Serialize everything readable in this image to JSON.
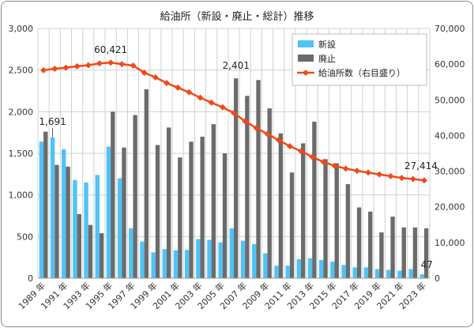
{
  "chart_data": {
    "type": "bar+line",
    "title": "給油所（新設・廃止・総計）推移",
    "years": [
      1989,
      1990,
      1991,
      1992,
      1993,
      1994,
      1995,
      1996,
      1997,
      1998,
      1999,
      2000,
      2001,
      2002,
      2003,
      2004,
      2005,
      2006,
      2007,
      2008,
      2009,
      2010,
      2011,
      2012,
      2013,
      2014,
      2015,
      2016,
      2017,
      2018,
      2019,
      2020,
      2021,
      2022,
      2023
    ],
    "x_tick_labels": [
      "1989 年",
      "1991 年",
      "1993 年",
      "1995 年",
      "1997 年",
      "1999 年",
      "2001 年",
      "2003 年",
      "2005 年",
      "2007 年",
      "2009 年",
      "2011 年",
      "2013 年",
      "2015 年",
      "2017 年",
      "2019 年",
      "2021 年",
      "2023 年"
    ],
    "left_axis": {
      "min": 0,
      "max": 3000,
      "step": 500,
      "tick_labels": [
        "0",
        "500",
        "1,000",
        "1,500",
        "2,000",
        "2,500",
        "3,000"
      ]
    },
    "right_axis": {
      "min": 0,
      "max": 70000,
      "step": 10000,
      "tick_labels": [
        "0",
        "10,000",
        "20,000",
        "30,000",
        "40,000",
        "50,000",
        "60,000",
        "70,000"
      ]
    },
    "series": [
      {
        "name": "新設",
        "axis": "left",
        "kind": "bar",
        "color": "#4fc3f7",
        "values": [
          1640,
          1691,
          1550,
          1180,
          1150,
          1240,
          1580,
          1200,
          600,
          440,
          310,
          350,
          335,
          340,
          470,
          460,
          430,
          600,
          450,
          410,
          300,
          150,
          150,
          230,
          240,
          220,
          200,
          160,
          130,
          130,
          110,
          100,
          90,
          110,
          47
        ]
      },
      {
        "name": "廃止",
        "axis": "left",
        "kind": "bar",
        "color": "#6b6b6b",
        "values": [
          1760,
          1360,
          1340,
          770,
          640,
          540,
          2000,
          1570,
          1960,
          2270,
          1600,
          1810,
          1450,
          1640,
          1700,
          1850,
          1500,
          2401,
          2190,
          2380,
          2040,
          1740,
          1270,
          1620,
          1880,
          1430,
          1380,
          1130,
          850,
          800,
          550,
          740,
          610,
          610,
          600
        ]
      },
      {
        "name": "給油所数（右目盛り）",
        "axis": "right",
        "kind": "line",
        "color": "#f04a1a",
        "values": [
          58300,
          58700,
          59000,
          59400,
          59700,
          60200,
          60421,
          60000,
          59600,
          57600,
          56300,
          54700,
          53400,
          52100,
          50600,
          49200,
          47900,
          46300,
          44000,
          42100,
          40400,
          38700,
          37000,
          35600,
          34000,
          32600,
          31500,
          30700,
          30100,
          29600,
          29100,
          28600,
          28100,
          27800,
          27414
        ]
      }
    ],
    "annotations": [
      {
        "series": 0,
        "index": 1,
        "text": "1,691"
      },
      {
        "series": 2,
        "index": 6,
        "text": "60,421"
      },
      {
        "series": 1,
        "index": 17,
        "text": "2,401"
      },
      {
        "series": 2,
        "index": 34,
        "text": "27,414"
      },
      {
        "series": 0,
        "index": 34,
        "text": "47"
      }
    ],
    "legend_position": "top-right"
  }
}
